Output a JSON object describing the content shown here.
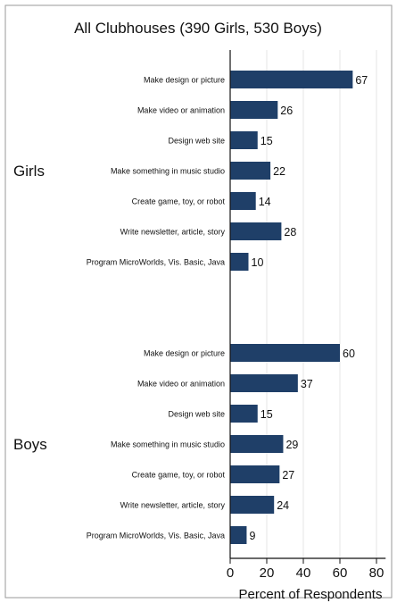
{
  "chart_data": {
    "type": "bar",
    "orientation": "horizontal",
    "title": "All Clubhouses (390 Girls, 530 Boys)",
    "xlabel": "Percent of Respondents",
    "ylabel": "",
    "xlim": [
      0,
      85
    ],
    "xticks": [
      "0",
      "20",
      "40",
      "60",
      "80"
    ],
    "grid": true,
    "bar_color": "#1f3f68",
    "categories": [
      "Make design or picture",
      "Make video or animation",
      "Design web site",
      "Make something in music studio",
      "Create game, toy, or robot",
      "Write newsletter, article, story",
      "Program MicroWorlds, Vis. Basic, Java"
    ],
    "groups": [
      {
        "name": "Girls",
        "values": [
          67,
          26,
          15,
          22,
          14,
          28,
          10
        ]
      },
      {
        "name": "Boys",
        "values": [
          60,
          37,
          15,
          29,
          27,
          24,
          9
        ]
      }
    ]
  }
}
